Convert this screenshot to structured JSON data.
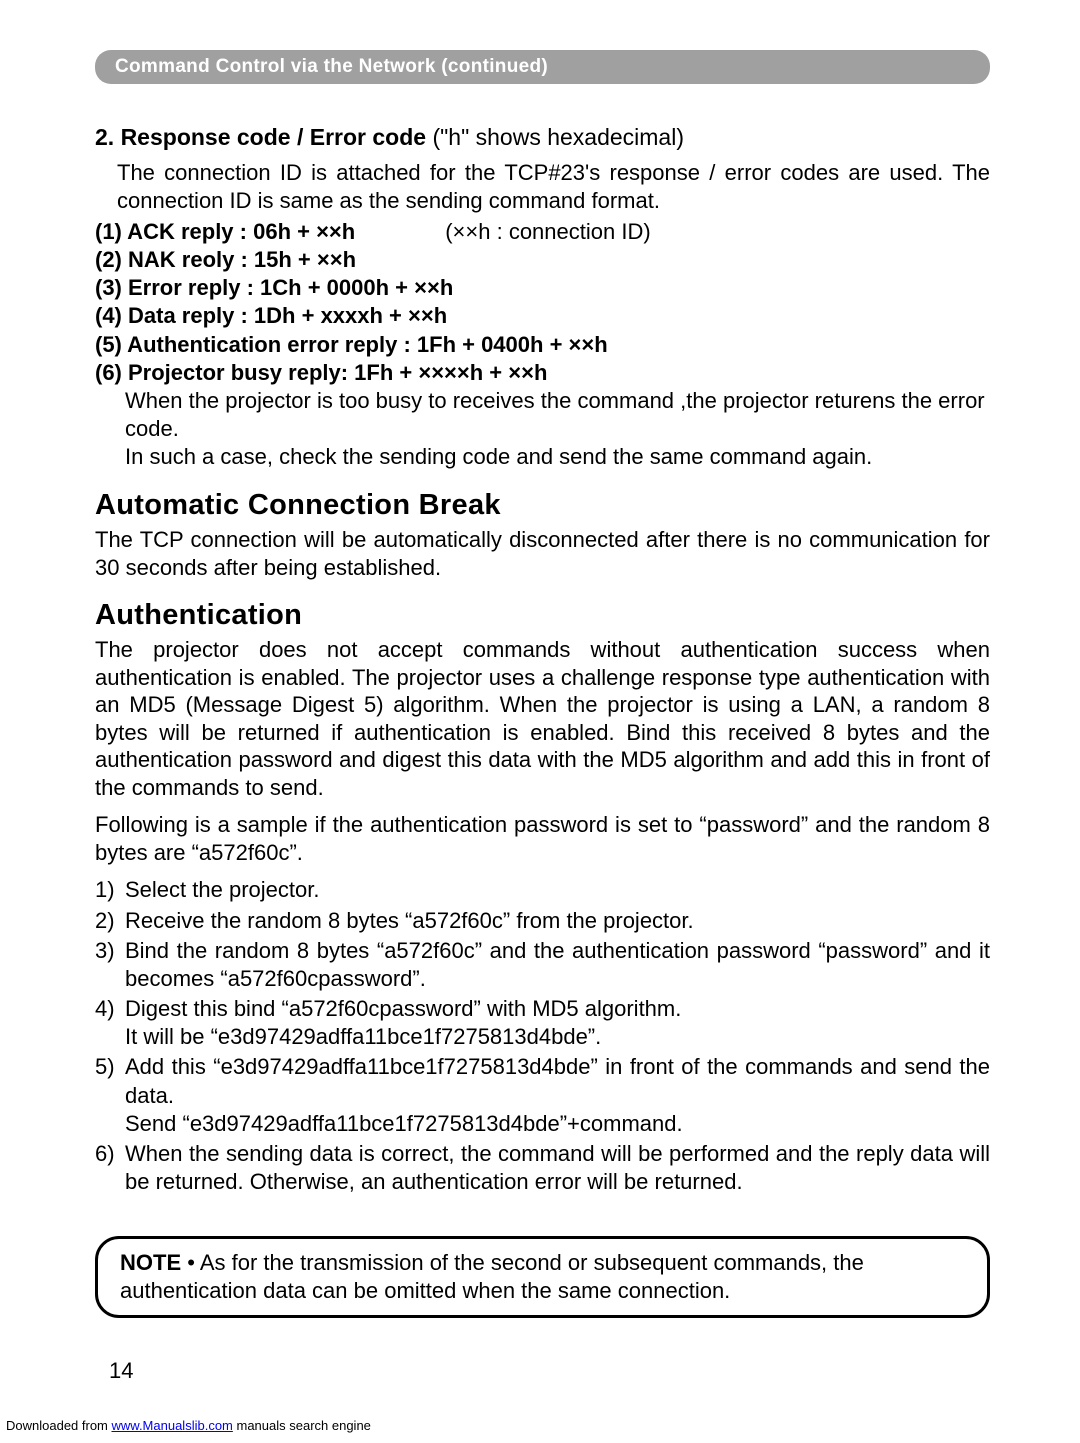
{
  "header": "Command Control via the Network (continued)",
  "sec1": {
    "titleBold": "2. Response code / Error code ",
    "titleNormal": "(\"h\" shows hexadecimal)",
    "intro": "The connection ID is attached for the TCP#23's response / error codes are used. The connection ID is same as the sending command format.",
    "r1l": "(1) ACK reply : 06h + ××h",
    "r1r": "(××h : connection ID)",
    "r2": "(2) NAK reoly : 15h + ××h",
    "r3": "(3) Error reply : 1Ch + 0000h + ××h",
    "r4": "(4) Data reply : 1Dh + xxxxh + ××h",
    "r5": "(5) Authentication error reply : 1Fh + 0400h + ××h",
    "r6": "(6) Projector busy reply: 1Fh + ××××h + ××h",
    "busy1": "When the projector is too busy to receives the command ,the projector returens the error code.",
    "busy2": "In such a case, check the sending code and send the same command again."
  },
  "sec2": {
    "title": "Automatic Connection Break",
    "body": "The TCP connection will be automatically disconnected after there is no communication for 30 seconds after being established."
  },
  "sec3": {
    "title": "Authentication",
    "p1": "The projector does not accept commands without authentication success when authentication is enabled. The projector uses a challenge response type authentication with an MD5 (Message Digest 5) algorithm. When the projector is using a LAN, a random 8 bytes will be returned if authentication is enabled. Bind this received 8 bytes and the authentication password and digest this data with the MD5 algorithm and add this in front of the commands to send.",
    "p2": "Following is a sample if the authentication password is set to “password” and the random 8 bytes are “a572f60c”.",
    "s1": "Select the projector.",
    "s2": "Receive the random 8 bytes “a572f60c” from the projector.",
    "s3": "Bind the random 8 bytes “a572f60c” and the authentication password “password” and it becomes “a572f60cpassword”.",
    "s4a": "Digest this bind “a572f60cpassword” with MD5 algorithm.",
    "s4b": "It will be “e3d97429adffa11bce1f7275813d4bde”.",
    "s5a": "Add this “e3d97429adffa11bce1f7275813d4bde” in front of the commands and send the data.",
    "s5b": "Send “e3d97429adffa11bce1f7275813d4bde”+command.",
    "s6": "When the sending data is correct, the command will be performed and the reply data will be returned. Otherwise, an authentication error will be returned."
  },
  "note": {
    "label": "NOTE",
    "text": " • As for the transmission of the second or subsequent commands, the authentication data can be omitted when the same connection."
  },
  "pageNumber": "14",
  "footer": {
    "pre": "Downloaded from ",
    "link": "www.Manualslib.com",
    "post": " manuals search engine"
  }
}
